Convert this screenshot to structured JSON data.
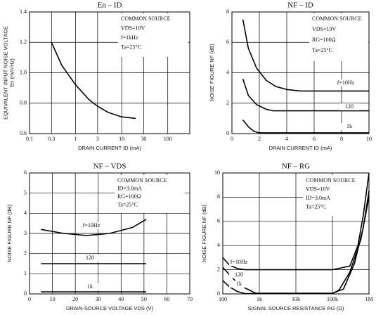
{
  "chart_data": [
    {
      "type": "line",
      "title": "En – ID",
      "x_label": "DRAIN CURRENT ID (mA)",
      "y_label": [
        "EQUIVALENT INPUT NOISE VOLTAGE",
        "En (nV/√Hz)"
      ],
      "annotations": [
        "COMMON SOURCE",
        "VDS=10V",
        "f=1kHz",
        "Ta=25°C"
      ],
      "xscale": "log",
      "xlim": [
        0.1,
        300
      ],
      "xticks": [
        0.1,
        0.3,
        1,
        3,
        10,
        30,
        100
      ],
      "ylim": [
        0.6,
        1.4
      ],
      "yticks": [
        0.6,
        0.8,
        {
          "value": 1,
          "label": "1.0"
        },
        1.2,
        1.4
      ],
      "grid": true,
      "series": [
        {
          "name": "En",
          "color": "#000000",
          "x": [
            0.3,
            0.5,
            1,
            2,
            3,
            5,
            10,
            20
          ],
          "values": [
            1.2,
            1.05,
            0.92,
            0.82,
            0.78,
            0.74,
            0.71,
            0.7
          ]
        }
      ]
    },
    {
      "type": "line",
      "title": "NF – ID",
      "x_label": "DRAIN CURRENT ID (mA)",
      "y_label": [
        "NOISE FIGURE NF (dB)"
      ],
      "annotations": [
        "COMMON SOURCE",
        "VDS=10V",
        "RG=100Ω",
        "Ta=25°C"
      ],
      "xlim": [
        0,
        10
      ],
      "xticks": [
        0,
        2,
        4,
        6,
        8,
        10
      ],
      "ylim": [
        0,
        8
      ],
      "yticks": [
        0,
        2,
        4,
        6,
        8
      ],
      "grid": true,
      "series": [
        {
          "name": "f=10Hz",
          "color": "#000000",
          "x": [
            0.8,
            1.2,
            1.8,
            2.5,
            3.2,
            4,
            5,
            10
          ],
          "values": [
            7.5,
            5.6,
            4.3,
            3.5,
            3.1,
            2.9,
            2.8,
            2.8
          ]
        },
        {
          "name": "120",
          "color": "#000000",
          "x": [
            0.8,
            1.2,
            1.8,
            2.5,
            3,
            4,
            10
          ],
          "values": [
            3.6,
            2.5,
            1.9,
            1.6,
            1.5,
            1.5,
            1.5
          ]
        },
        {
          "name": "1k",
          "color": "#000000",
          "x": [
            0.8,
            1.2,
            1.6,
            2,
            10
          ],
          "values": [
            0.9,
            0.45,
            0.15,
            0.05,
            0.05
          ]
        }
      ]
    },
    {
      "type": "line",
      "title": "NF – VDS",
      "x_label": "DRAIN-SOURCE VOLTAGE VDS (V)",
      "y_label": [
        "NOISE FIGURE NF (dB)"
      ],
      "annotations": [
        "COMMON SOURCE",
        "ID=3.0mA",
        "RG=100Ω",
        "Ta=25°C"
      ],
      "xlim": [
        0,
        70
      ],
      "xticks": [
        0,
        10,
        20,
        30,
        40,
        50,
        60,
        70
      ],
      "ylim": [
        0,
        6
      ],
      "yticks": [
        0,
        1,
        2,
        3,
        4,
        5,
        6
      ],
      "grid": true,
      "series": [
        {
          "name": "f=10Hz",
          "color": "#000000",
          "x": [
            5,
            15,
            25,
            35,
            45,
            51
          ],
          "values": [
            3.2,
            3,
            2.9,
            3,
            3.3,
            3.7
          ]
        },
        {
          "name": "120",
          "color": "#000000",
          "x": [
            5,
            51
          ],
          "values": [
            1.5,
            1.5
          ]
        },
        {
          "name": "1k",
          "color": "#000000",
          "x": [
            5,
            51
          ],
          "values": [
            0.1,
            0.1
          ]
        }
      ]
    },
    {
      "type": "line",
      "title": "NF – RG",
      "x_label": "SIGNAL SOURCE RESISTANCE RG (Ω)",
      "y_label": [
        "NOISE FIGURE NF (dB)"
      ],
      "annotations": [
        "COMMON SOURCE",
        "VDS=10V",
        "ID=3.0mA",
        "Ta=25°C"
      ],
      "xscale": "log",
      "xlim": [
        100,
        1000000
      ],
      "xticks": [
        100,
        {
          "value": 1000,
          "label": "1k"
        },
        {
          "value": 10000,
          "label": "10k"
        },
        {
          "value": 100000,
          "label": "100k"
        },
        {
          "value": 1000000,
          "label": "1M"
        }
      ],
      "ylim": [
        0,
        10
      ],
      "yticks": [
        0,
        2,
        4,
        6,
        8,
        10
      ],
      "grid": true,
      "series": [
        {
          "name": "f=10Hz",
          "color": "#000000",
          "x": [
            100,
            150,
            250,
            400,
            1000,
            100000,
            300000,
            500000,
            700000,
            1000000
          ],
          "values": [
            3,
            2.4,
            2.1,
            2,
            2,
            2,
            2.3,
            4,
            6.5,
            10
          ]
        },
        {
          "name": "120",
          "color": "#000000",
          "x": [
            100,
            200,
            400,
            800,
            100000,
            200000,
            400000,
            700000,
            1000000
          ],
          "values": [
            2.2,
            1.2,
            0.5,
            0.05,
            0.05,
            0.4,
            2.5,
            5.5,
            8.5
          ]
        },
        {
          "name": "1k",
          "color": "#000000",
          "x": [
            100,
            150,
            250,
            400,
            100000,
            150000,
            300000,
            600000,
            1000000
          ],
          "values": [
            1.1,
            0.6,
            0.2,
            0.03,
            0.03,
            0.3,
            1.8,
            4.5,
            8
          ]
        }
      ]
    }
  ]
}
